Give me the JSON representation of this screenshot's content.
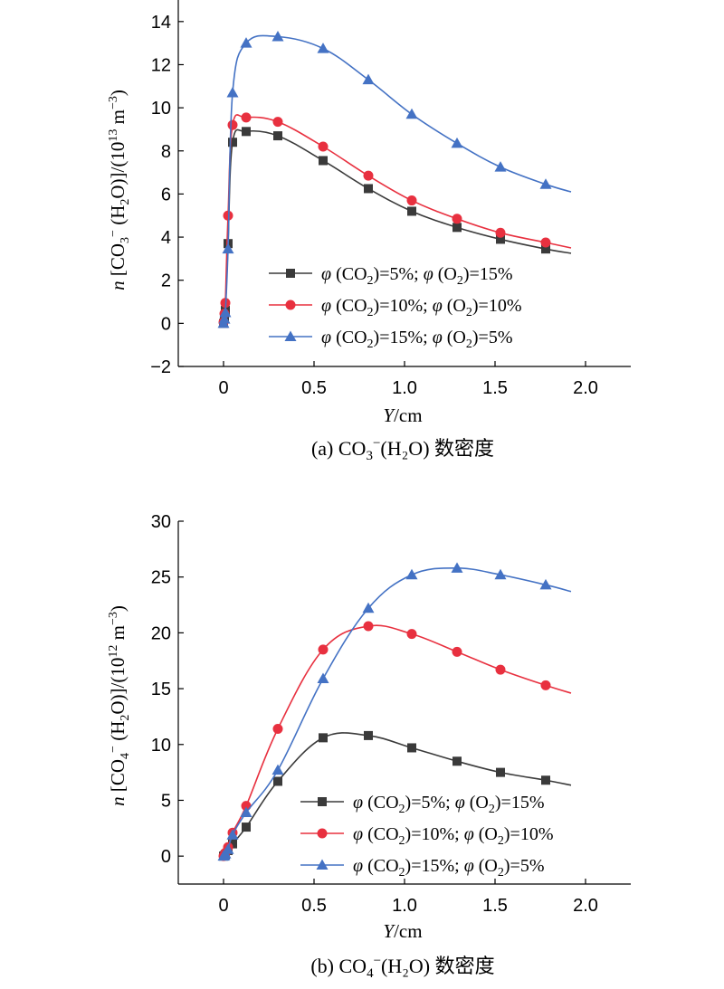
{
  "chart_data": [
    {
      "type": "line",
      "caption": {
        "prefix": "(a) CO",
        "sub": "3",
        "sup": "−",
        "suffix": "(H₂O) 数密度"
      },
      "xlabel": {
        "italic": "Y",
        "rest": "/cm"
      },
      "ylabel": {
        "n": "n",
        "a": " [CO",
        "sub1": "3",
        "b": "− (H",
        "sub2": "2",
        "c": "O)]/(10",
        "sup": "13",
        "d": " m",
        "sup2": "−3",
        "e": ")"
      },
      "xlim": [
        -0.25,
        2.25
      ],
      "ylim": [
        -2,
        15
      ],
      "xticks": [
        0,
        0.5,
        1.0,
        1.5,
        2.0
      ],
      "xtick_labels": [
        "0",
        "0.5",
        "1.0",
        "1.5",
        "2.0"
      ],
      "yticks": [
        -2,
        0,
        2,
        4,
        6,
        8,
        10,
        12,
        14
      ],
      "ytick_labels": [
        "−2",
        "0",
        "2",
        "4",
        "6",
        "8",
        "10",
        "12",
        "14"
      ],
      "legend_position": "lower-right",
      "series": [
        {
          "name": "φ (CO₂)=5%; φ (O₂)=15%",
          "legend": {
            "a": "φ",
            "b": " (CO",
            "sub1": "2",
            "c": ")=5%; ",
            "d": "φ",
            "e": " (O",
            "sub2": "2",
            "f": ")=15%"
          },
          "color": "#3a3a3a",
          "marker": "square",
          "x": [
            0,
            0.005,
            0.01,
            0.025,
            0.05,
            0.125,
            0.3,
            0.55,
            0.8,
            1.04,
            1.29,
            1.53,
            1.78
          ],
          "y": [
            0.0,
            0.3,
            0.6,
            3.7,
            8.4,
            8.9,
            8.7,
            7.55,
            6.25,
            5.2,
            4.45,
            3.9,
            3.45
          ],
          "curve_x": [
            1.92
          ],
          "curve_y": [
            3.25
          ]
        },
        {
          "name": "φ (CO₂)=10%; φ (O₂)=10%",
          "legend": {
            "a": "φ",
            "b": " (CO",
            "sub1": "2",
            "c": ")=10%; ",
            "d": "φ",
            "e": " (O",
            "sub2": "2",
            "f": ")=10%"
          },
          "color": "#e8303f",
          "marker": "circle",
          "x": [
            0,
            0.005,
            0.01,
            0.025,
            0.05,
            0.125,
            0.3,
            0.55,
            0.8,
            1.04,
            1.29,
            1.53,
            1.78
          ],
          "y": [
            0.05,
            0.45,
            0.95,
            5.0,
            9.2,
            9.55,
            9.35,
            8.2,
            6.85,
            5.7,
            4.85,
            4.2,
            3.75
          ],
          "curve_x": [
            1.92
          ],
          "curve_y": [
            3.5
          ]
        },
        {
          "name": "φ (CO₂)=15%; φ (O₂)=5%",
          "legend": {
            "a": "φ",
            "b": " (CO",
            "sub1": "2",
            "c": ")=15%; ",
            "d": "φ",
            "e": " (O",
            "sub2": "2",
            "f": ")=5%"
          },
          "color": "#4472c4",
          "marker": "triangle",
          "x": [
            0,
            0.005,
            0.01,
            0.025,
            0.05,
            0.125,
            0.3,
            0.55,
            0.8,
            1.04,
            1.29,
            1.53,
            1.78
          ],
          "y": [
            0.0,
            0.2,
            0.5,
            3.45,
            10.7,
            13.0,
            13.3,
            12.75,
            11.3,
            9.7,
            8.35,
            7.25,
            6.45
          ],
          "curve_x": [
            1.92
          ],
          "curve_y": [
            6.1
          ]
        }
      ]
    },
    {
      "type": "line",
      "caption": {
        "prefix": "(b) CO",
        "sub": "4",
        "sup": "−",
        "suffix": "(H₂O) 数密度"
      },
      "xlabel": {
        "italic": "Y",
        "rest": "/cm"
      },
      "ylabel": {
        "n": "n",
        "a": " [CO",
        "sub1": "4",
        "b": "− (H",
        "sub2": "2",
        "c": "O)]/(10",
        "sup": "12",
        "d": " m",
        "sup2": "−3",
        "e": ")"
      },
      "xlim": [
        -0.25,
        2.25
      ],
      "ylim": [
        -2.5,
        30
      ],
      "xticks": [
        0,
        0.5,
        1.0,
        1.5,
        2.0
      ],
      "xtick_labels": [
        "0",
        "0.5",
        "1.0",
        "1.5",
        "2.0"
      ],
      "yticks": [
        0,
        5,
        10,
        15,
        20,
        25,
        30
      ],
      "ytick_labels": [
        "0",
        "5",
        "10",
        "15",
        "20",
        "25",
        "30"
      ],
      "legend_position": "lower-right",
      "series": [
        {
          "name": "φ (CO₂)=5%; φ (O₂)=15%",
          "legend": {
            "a": "φ",
            "b": " (CO",
            "sub1": "2",
            "c": ")=5%; ",
            "d": "φ",
            "e": " (O",
            "sub2": "2",
            "f": ")=15%"
          },
          "color": "#3a3a3a",
          "marker": "square",
          "x": [
            0,
            0.005,
            0.01,
            0.025,
            0.05,
            0.125,
            0.3,
            0.55,
            0.8,
            1.04,
            1.29,
            1.53,
            1.78
          ],
          "y": [
            0.0,
            0.05,
            0.15,
            0.5,
            1.1,
            2.6,
            6.7,
            10.6,
            10.8,
            9.7,
            8.5,
            7.5,
            6.8
          ],
          "curve_x": [
            1.92
          ],
          "curve_y": [
            6.35
          ]
        },
        {
          "name": "φ (CO₂)=10%; φ (O₂)=10%",
          "legend": {
            "a": "φ",
            "b": " (CO",
            "sub1": "2",
            "c": ")=10%; ",
            "d": "φ",
            "e": " (O",
            "sub2": "2",
            "f": ")=10%"
          },
          "color": "#e8303f",
          "marker": "circle",
          "x": [
            0,
            0.005,
            0.01,
            0.025,
            0.05,
            0.125,
            0.3,
            0.55,
            0.8,
            1.04,
            1.29,
            1.53,
            1.78
          ],
          "y": [
            0.0,
            0.1,
            0.3,
            0.8,
            2.1,
            4.5,
            11.4,
            18.5,
            20.6,
            19.9,
            18.3,
            16.7,
            15.3
          ],
          "curve_x": [
            1.92
          ],
          "curve_y": [
            14.6
          ]
        },
        {
          "name": "φ (CO₂)=15%; φ (O₂)=5%",
          "legend": {
            "a": "φ",
            "b": " (CO",
            "sub1": "2",
            "c": ")=15%; ",
            "d": "φ",
            "e": " (O",
            "sub2": "2",
            "f": ")=5%"
          },
          "color": "#4472c4",
          "marker": "triangle",
          "x": [
            0,
            0.005,
            0.01,
            0.025,
            0.05,
            0.125,
            0.3,
            0.55,
            0.8,
            1.04,
            1.29,
            1.53,
            1.78
          ],
          "y": [
            0.0,
            0.05,
            0.2,
            0.6,
            1.9,
            3.9,
            7.7,
            15.9,
            22.2,
            25.2,
            25.8,
            25.2,
            24.3
          ],
          "curve_x": [
            1.92
          ],
          "curve_y": [
            23.7
          ]
        }
      ]
    }
  ]
}
